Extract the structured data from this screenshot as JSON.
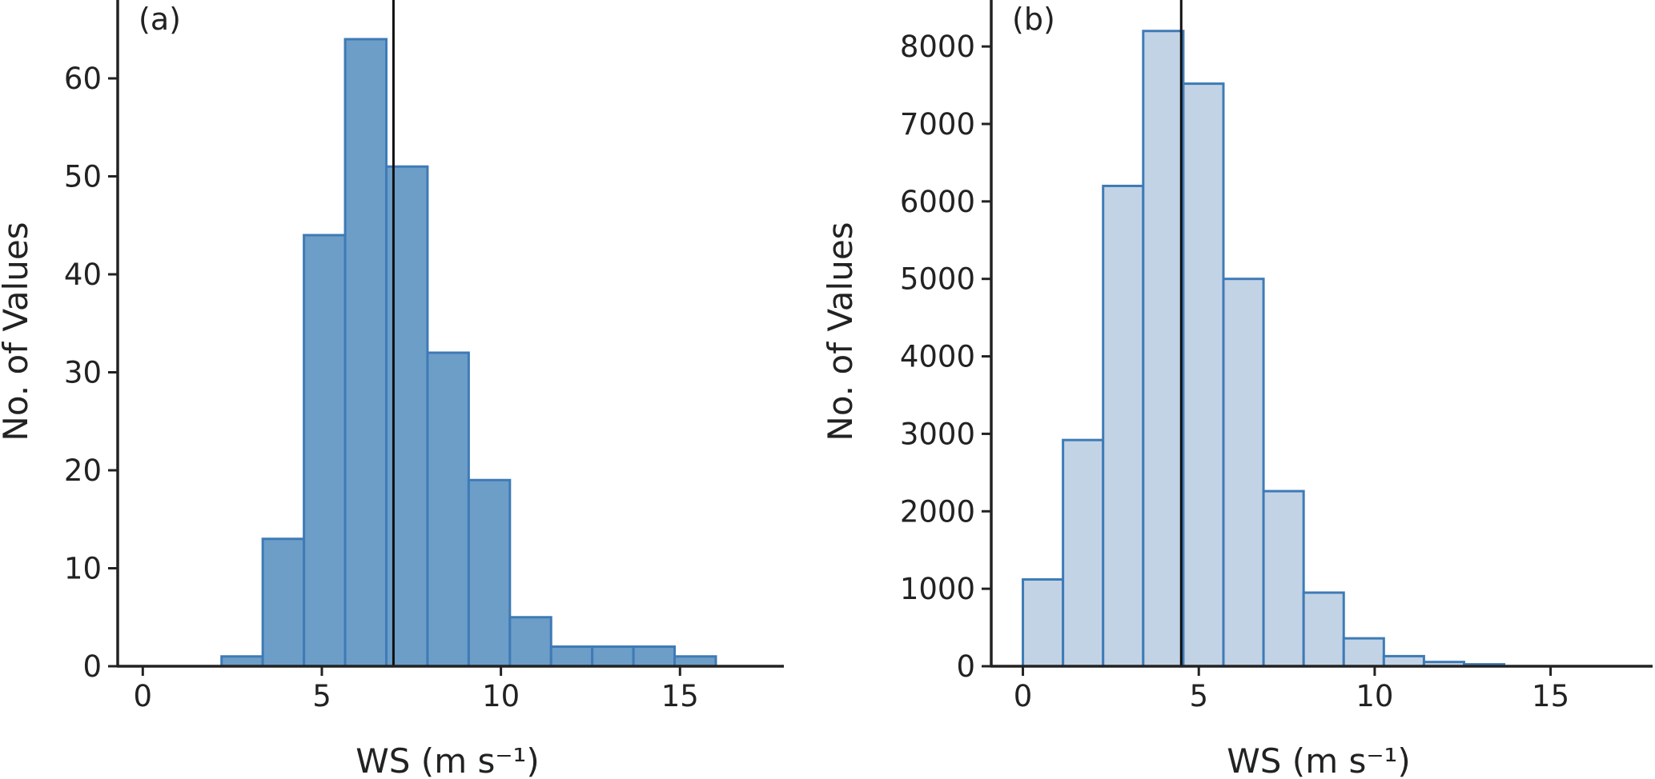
{
  "chart_data": [
    {
      "type": "bar",
      "panel_label": "(a)",
      "xlabel": "WS (m s⁻¹)",
      "ylabel": "No. of Values",
      "bin_width": 1.15,
      "bin_start": 2.2,
      "values": [
        1,
        13,
        44,
        64,
        51,
        32,
        19,
        5,
        2,
        2,
        2,
        1
      ],
      "mean_line_x": 7.0,
      "xlim": [
        -0.7,
        17.9
      ],
      "ylim": [
        0,
        68
      ],
      "xticks": [
        0,
        5,
        10,
        15
      ],
      "yticks": [
        0,
        10,
        20,
        30,
        40,
        50,
        60
      ],
      "fill_color": "#6d9ec8",
      "edge_color": "#3e7bb6",
      "line_color": "#111111",
      "grid": false
    },
    {
      "type": "bar",
      "panel_label": "(b)",
      "xlabel": "WS (m s⁻¹)",
      "ylabel": "No. of Values",
      "bin_width": 1.14,
      "bin_start": 0.0,
      "values": [
        1120,
        2920,
        6200,
        8200,
        7520,
        5000,
        2260,
        950,
        360,
        130,
        55,
        25
      ],
      "mean_line_x": 4.5,
      "xlim": [
        -0.9,
        17.9
      ],
      "ylim": [
        0,
        8600
      ],
      "xticks": [
        0,
        5,
        10,
        15
      ],
      "yticks": [
        0,
        1000,
        2000,
        3000,
        4000,
        5000,
        6000,
        7000,
        8000
      ],
      "fill_color": "#c3d3e6",
      "edge_color": "#3e7bb6",
      "line_color": "#111111",
      "grid": false
    }
  ]
}
